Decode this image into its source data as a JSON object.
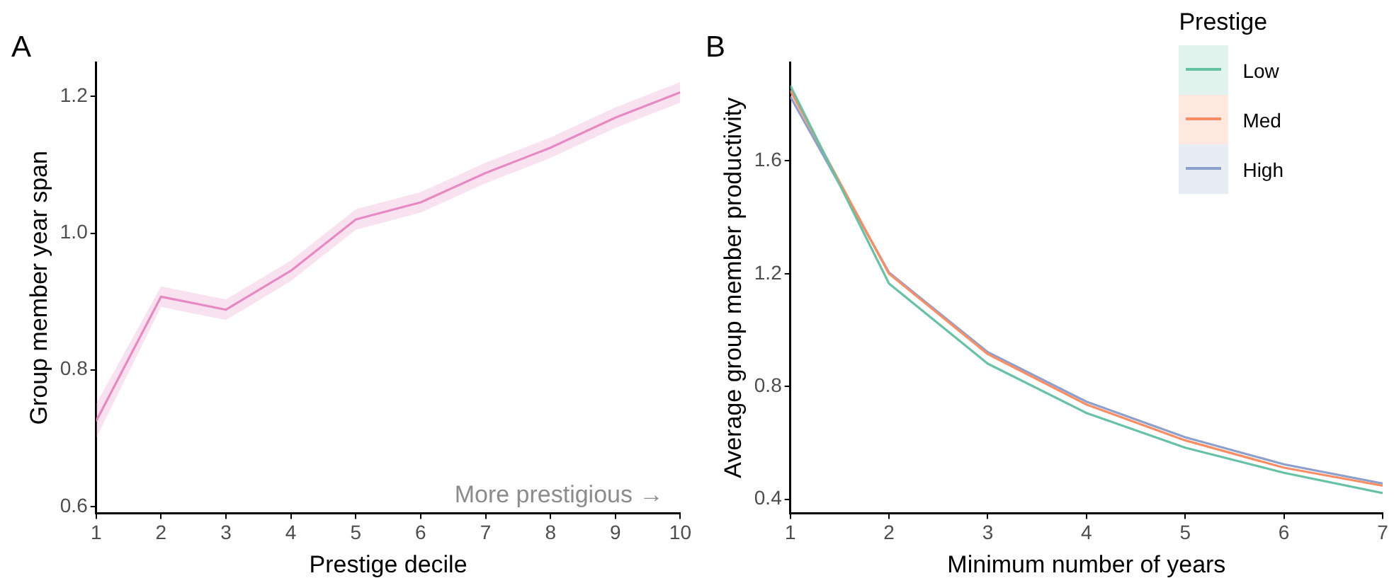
{
  "chart_data": [
    {
      "type": "line",
      "title": "A",
      "xlabel": "Prestige decile",
      "ylabel": "Group member year span",
      "x": [
        1,
        2,
        3,
        4,
        5,
        6,
        7,
        8,
        9,
        10
      ],
      "xlim": [
        1,
        10
      ],
      "xticks": [
        1,
        2,
        3,
        4,
        5,
        6,
        7,
        8,
        9,
        10
      ],
      "ylim": [
        0.59,
        1.25
      ],
      "yticks": [
        0.6,
        0.8,
        {
          "value": 1,
          "label": "1.0"
        },
        1.2
      ],
      "grid": false,
      "legend": false,
      "series": [
        {
          "color": "#e78ac3",
          "values": [
            0.725,
            0.907,
            0.888,
            0.945,
            1.02,
            1.045,
            1.088,
            1.125,
            1.169,
            1.206
          ],
          "lower": [
            0.7,
            0.892,
            0.873,
            0.93,
            1.005,
            1.03,
            1.073,
            1.11,
            1.154,
            1.191
          ],
          "upper": [
            0.75,
            0.922,
            0.903,
            0.96,
            1.035,
            1.06,
            1.103,
            1.14,
            1.184,
            1.221
          ]
        }
      ],
      "annotations": [
        "More prestigious →"
      ]
    },
    {
      "type": "line",
      "title": "B",
      "xlabel": "Minimum number of years",
      "ylabel": "Average group member productivity",
      "x": [
        1,
        2,
        3,
        4,
        5,
        6,
        7
      ],
      "xlim": [
        1,
        7
      ],
      "xticks": [
        1,
        2,
        3,
        4,
        5,
        6,
        7
      ],
      "ylim": [
        0.35,
        1.95
      ],
      "yticks": [
        0.4,
        0.8,
        1.2,
        1.6
      ],
      "grid": false,
      "legend": "top right",
      "legend_title": "Prestige",
      "series": [
        {
          "name": "Low",
          "color": "#66c2a5",
          "values": [
            1.867,
            1.165,
            0.881,
            0.706,
            0.583,
            0.494,
            0.422
          ]
        },
        {
          "name": "Med",
          "color": "#fc8d62",
          "values": [
            1.85,
            1.2,
            0.915,
            0.736,
            0.609,
            0.512,
            0.448
          ]
        },
        {
          "name": "High",
          "color": "#8da0cb",
          "values": [
            1.828,
            1.204,
            0.922,
            0.746,
            0.62,
            0.524,
            0.456
          ]
        }
      ]
    }
  ]
}
